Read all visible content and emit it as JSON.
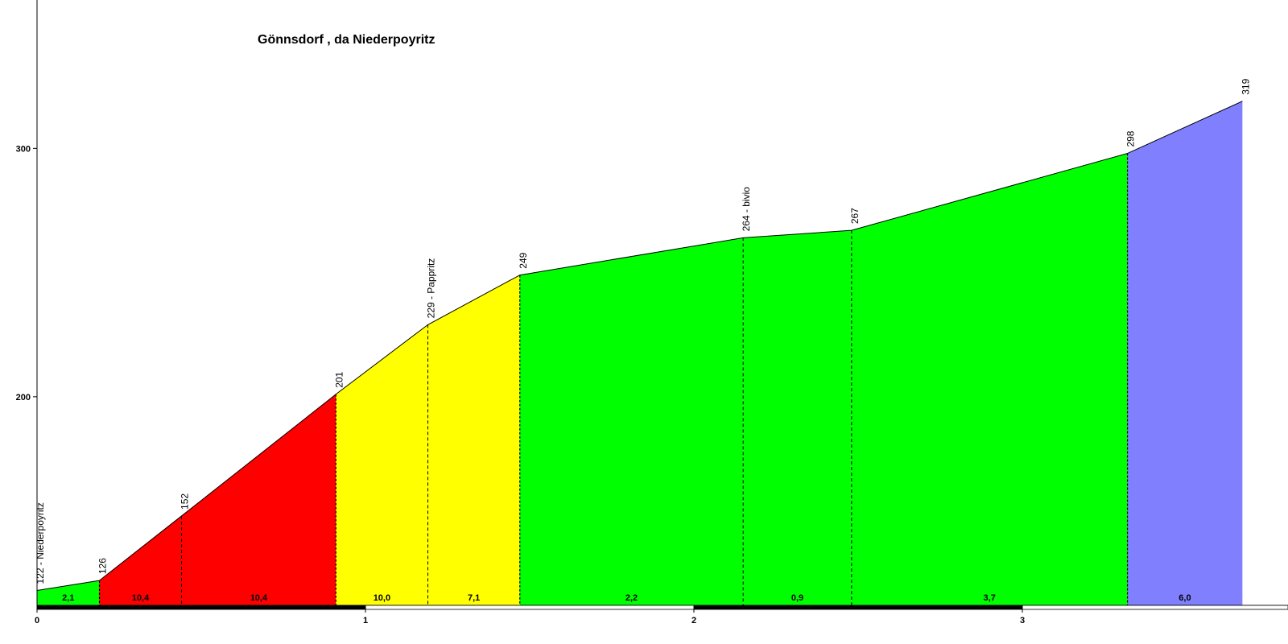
{
  "chart_data": {
    "type": "area",
    "title": "Gönnsdorf , da Niederpoyritz",
    "xlabel": "",
    "ylabel": "",
    "xlim": [
      0,
      3.82
    ],
    "ylim": [
      116,
      360
    ],
    "x_ticks": [
      {
        "value": 0,
        "label": "0"
      },
      {
        "value": 1,
        "label": "1"
      },
      {
        "value": 2,
        "label": "2"
      },
      {
        "value": 3,
        "label": "3"
      }
    ],
    "y_ticks": [
      {
        "value": 200,
        "label": "200"
      },
      {
        "value": 300,
        "label": "300"
      }
    ],
    "points": [
      {
        "x": 0.0,
        "y": 122,
        "label": "122 - Niederpoyritz"
      },
      {
        "x": 0.19,
        "y": 126,
        "label": "126"
      },
      {
        "x": 0.44,
        "y": 152,
        "label": "152"
      },
      {
        "x": 0.91,
        "y": 201,
        "label": "201"
      },
      {
        "x": 1.19,
        "y": 229,
        "label": "229 - Pappritz"
      },
      {
        "x": 1.47,
        "y": 249,
        "label": "249"
      },
      {
        "x": 2.15,
        "y": 264,
        "label": "264 - bivio"
      },
      {
        "x": 2.48,
        "y": 267,
        "label": "267"
      },
      {
        "x": 3.32,
        "y": 298,
        "label": "298"
      },
      {
        "x": 3.67,
        "y": 319,
        "label": "319"
      }
    ],
    "segments": [
      {
        "from": 0,
        "to": 1,
        "gradient": "2,1",
        "color": "#00ff00"
      },
      {
        "from": 1,
        "to": 2,
        "gradient": "10,4",
        "color": "#ff0000"
      },
      {
        "from": 2,
        "to": 3,
        "gradient": "10,4",
        "color": "#ff0000"
      },
      {
        "from": 3,
        "to": 4,
        "gradient": "10,0",
        "color": "#ffff00"
      },
      {
        "from": 4,
        "to": 5,
        "gradient": "7,1",
        "color": "#ffff00"
      },
      {
        "from": 5,
        "to": 6,
        "gradient": "2,2",
        "color": "#00ff00"
      },
      {
        "from": 6,
        "to": 7,
        "gradient": "0,9",
        "color": "#00ff00"
      },
      {
        "from": 7,
        "to": 8,
        "gradient": "3,7",
        "color": "#00ff00"
      },
      {
        "from": 8,
        "to": 9,
        "gradient": "6,0",
        "color": "#8080ff"
      }
    ],
    "km_bar_colors": [
      "#000000",
      "#ffffff"
    ],
    "grid": false,
    "legend": "none"
  }
}
